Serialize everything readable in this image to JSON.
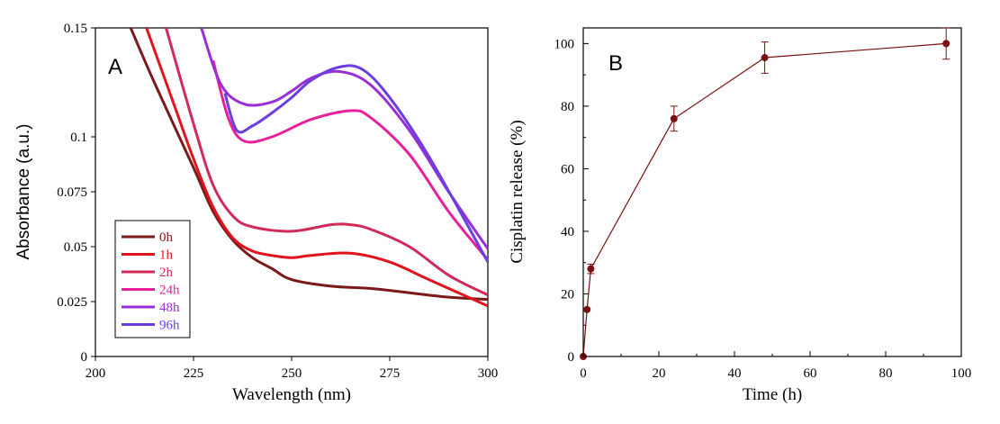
{
  "chart_data": [
    {
      "type": "line",
      "panel_label": "A",
      "xlabel": "Wavelength (nm)",
      "ylabel": "Absorbance (a.u.)",
      "xlim": [
        200,
        300
      ],
      "ylim": [
        0,
        0.15
      ],
      "xticks": [
        200,
        225,
        250,
        275,
        300
      ],
      "xtick_labels": [
        "200",
        "225",
        "250",
        "275",
        "300"
      ],
      "yticks": [
        0,
        0.025,
        0.05,
        0.075,
        0.1,
        0.15
      ],
      "ytick_labels": [
        "0",
        "0.025",
        "0.05",
        "0.075",
        "0.1",
        "0.15"
      ],
      "legend_position": "bottom-left",
      "series": [
        {
          "name": "0h",
          "color": "#7a1a1a",
          "x": [
            209,
            215,
            225,
            230,
            235,
            240,
            245,
            250,
            260,
            270,
            280,
            290,
            300
          ],
          "y": [
            0.15,
            0.125,
            0.086,
            0.066,
            0.053,
            0.045,
            0.04,
            0.035,
            0.032,
            0.031,
            0.029,
            0.027,
            0.026
          ]
        },
        {
          "name": "1h",
          "color": "#e0141e",
          "x": [
            213,
            220,
            225,
            230,
            235,
            240,
            245,
            250,
            255,
            265,
            275,
            285,
            300
          ],
          "y": [
            0.15,
            0.115,
            0.09,
            0.068,
            0.054,
            0.048,
            0.046,
            0.045,
            0.046,
            0.047,
            0.043,
            0.035,
            0.023
          ]
        },
        {
          "name": "2h",
          "color": "#d02a5a",
          "x": [
            218,
            225,
            230,
            235,
            240,
            250,
            260,
            265,
            270,
            280,
            290,
            300
          ],
          "y": [
            0.15,
            0.106,
            0.078,
            0.064,
            0.059,
            0.057,
            0.06,
            0.06,
            0.058,
            0.05,
            0.037,
            0.028
          ]
        },
        {
          "name": "24h",
          "color": "#e8209a",
          "x": [
            230,
            234,
            238,
            245,
            255,
            265,
            270,
            280,
            290,
            300
          ],
          "y": [
            0.135,
            0.108,
            0.098,
            0.1,
            0.108,
            0.112,
            0.109,
            0.092,
            0.066,
            0.044
          ]
        },
        {
          "name": "48h",
          "color": "#9a2ed6",
          "x": [
            227,
            232,
            238,
            245,
            250,
            255,
            262,
            270,
            280,
            290,
            300
          ],
          "y": [
            0.15,
            0.124,
            0.115,
            0.116,
            0.121,
            0.127,
            0.13,
            0.124,
            0.103,
            0.075,
            0.049
          ]
        },
        {
          "name": "96h",
          "color": "#6a3ee0",
          "x": [
            233,
            236,
            240,
            245,
            250,
            255,
            262,
            268,
            275,
            285,
            300
          ],
          "y": [
            0.12,
            0.103,
            0.105,
            0.111,
            0.118,
            0.126,
            0.132,
            0.131,
            0.118,
            0.091,
            0.043
          ]
        }
      ]
    },
    {
      "type": "line",
      "panel_label": "B",
      "xlabel": "Time (h)",
      "ylabel": "Cisplatin release (%)",
      "xlim": [
        0,
        100
      ],
      "ylim": [
        0,
        105
      ],
      "xticks": [
        0,
        20,
        40,
        60,
        80,
        100
      ],
      "xtick_labels": [
        "0",
        "20",
        "40",
        "60",
        "80",
        "100"
      ],
      "yticks": [
        0,
        20,
        40,
        60,
        80,
        100
      ],
      "ytick_labels": [
        "0",
        "20",
        "40",
        "60",
        "80",
        "100"
      ],
      "series": [
        {
          "color": "#7a1010",
          "x": [
            0,
            1,
            2,
            24,
            48,
            96
          ],
          "y": [
            0,
            15,
            28,
            76,
            95.5,
            100
          ],
          "err": [
            0,
            0,
            1.5,
            4,
            5,
            5
          ]
        }
      ]
    }
  ]
}
